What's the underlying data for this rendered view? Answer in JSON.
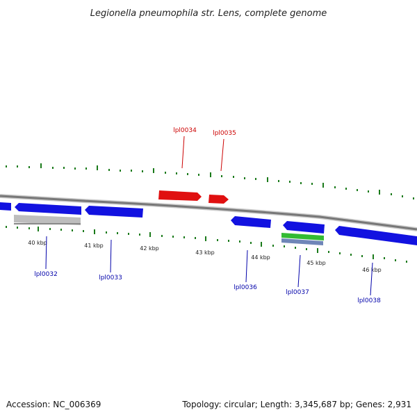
{
  "title": "Legionella pneumophila str. Lens, complete genome",
  "footer": {
    "accession": "Accession: NC_006369",
    "stats": "Topology: circular; Length: 3,345,687 bp; Genes: 2,931"
  },
  "colors": {
    "forward_gene": "#e01010",
    "reverse_gene": "#1212e0",
    "pseudo_feature": "#bdbdbd",
    "green_feature": "#33bb33",
    "steel_feature": "#6f86b8",
    "backbone": "#888888",
    "ticks": "#1a7a1a",
    "forward_label": "#cc0000",
    "reverse_label": "#0000aa"
  },
  "kbp_labels": [
    "40 kbp",
    "41 kbp",
    "42 kbp",
    "43 kbp",
    "44 kbp",
    "45 kbp",
    "46 kbp"
  ],
  "gene_labels": {
    "lpl0032": "lpl0032",
    "lpl0033": "lpl0033",
    "lpl0034": "lpl0034",
    "lpl0035": "lpl0035",
    "lpl0036": "lpl0036",
    "lpl0037": "lpl0037",
    "lpl0038": "lpl0038"
  }
}
